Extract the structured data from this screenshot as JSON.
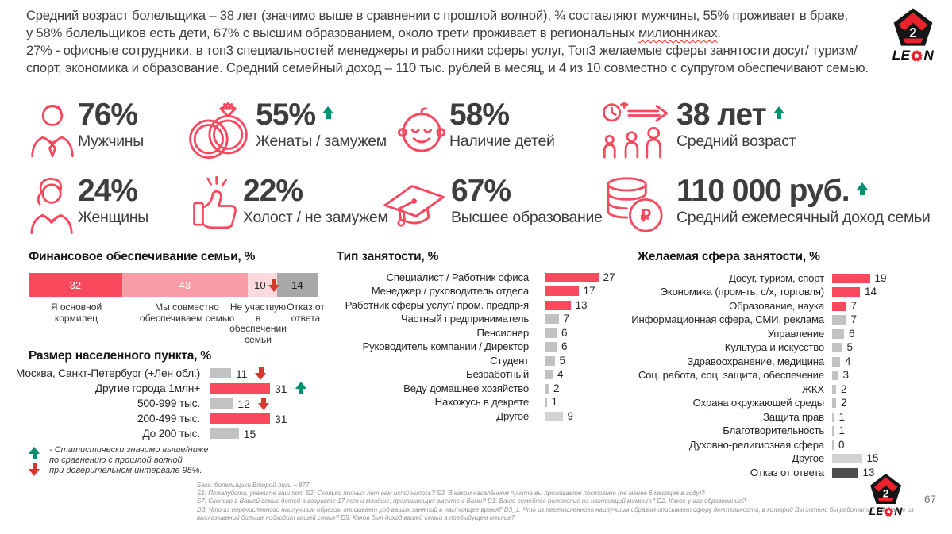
{
  "header": {
    "line1": "Средний возраст болельщика – 38 лет (значимо выше в сравнении с прошлой волной), ¾ составляют мужчины, 55% проживает в браке,",
    "line2_prefix": "у 58% болельщиков есть дети, 67% с высшим образованием, около трети проживает в региональных ",
    "line2_underlined": "милионниках",
    "line2_suffix": ".",
    "line3": "27% - офисные сотрудники, в топ3 специальностей менеджеры и работники сферы услуг, Топ3 желаемые сферы занятости досуг/ туризм/",
    "line4": "спорт, экономика и образование. Средний семейный доход – 110 тыс. рублей в месяц, и 4 из 10 совместно с супругом обеспечивают семью."
  },
  "stats": [
    {
      "value": "76%",
      "label": "Мужчины",
      "icon": "man-icon",
      "trend": ""
    },
    {
      "value": "55%",
      "label": "Женаты / замужем",
      "icon": "wedding-rings-icon",
      "trend": "up"
    },
    {
      "value": "58%",
      "label": "Наличие детей",
      "icon": "baby-icon",
      "trend": ""
    },
    {
      "value": "38 лет",
      "label": "Средний возраст",
      "icon": "age-growth-icon",
      "trend": "up"
    },
    {
      "value": "24%",
      "label": "Женщины",
      "icon": "woman-icon",
      "trend": ""
    },
    {
      "value": "22%",
      "label": "Холост / не замужем",
      "icon": "thumbs-up-icon",
      "trend": ""
    },
    {
      "value": "67%",
      "label": "Высшее образование",
      "icon": "graduation-cap-icon",
      "trend": ""
    },
    {
      "value": "110 000 руб.",
      "label": "Средний ежемесячный доход семьи",
      "icon": "coins-icon",
      "trend": "up"
    }
  ],
  "chart_data": [
    {
      "type": "bar",
      "subtype": "stacked-horizontal",
      "title": "Финансовое обеспечивание семьи, %",
      "categories": [
        "Я основной кормилец",
        "Мы совместно обеспечиваем семью",
        "Не участвую в обеспечении семьи",
        "Отказ от ответа"
      ],
      "values": [
        32,
        43,
        10,
        14
      ],
      "trends": [
        "",
        "",
        "down",
        ""
      ],
      "colors": [
        "#F8495D",
        "#F89CA8",
        "#FBD9DE",
        "#A8A8A8"
      ]
    },
    {
      "type": "bar",
      "subtype": "horizontal",
      "title": "Размер населенного пункта, %",
      "categories": [
        "Москва, Санкт-Петербург (+Лен обл.)",
        "Другие города 1млн+",
        "500-999 тыс.",
        "200-499 тыс.",
        "До 200 тыс."
      ],
      "values": [
        11,
        31,
        12,
        31,
        15
      ],
      "trends": [
        "down",
        "up",
        "down",
        "",
        ""
      ],
      "bar_colors": [
        "gray",
        "red",
        "gray",
        "red",
        "gray"
      ]
    },
    {
      "type": "bar",
      "subtype": "horizontal",
      "title": "Тип занятости, %",
      "categories": [
        "Специалист / Работник офиса",
        "Менеджер / руководитель отдела",
        "Работник сферы услуг/ пром. предпр-я",
        "Частный предприниматель",
        "Пенсионер",
        "Руководитель компании / Директор",
        "Студент",
        "Безработный",
        "Веду домашнее хозяйство",
        "Нахожусь в декрете",
        "Другое"
      ],
      "values": [
        27,
        17,
        13,
        7,
        6,
        6,
        5,
        4,
        2,
        1,
        9
      ],
      "bar_colors": [
        "red",
        "red",
        "red",
        "gray",
        "gray",
        "gray",
        "gray",
        "gray",
        "gray",
        "gray",
        "lightgray"
      ]
    },
    {
      "type": "bar",
      "subtype": "horizontal",
      "title": "Желаемая сфера занятости, %",
      "categories": [
        "Досуг, туризм, спорт",
        "Экономика (пром-ть, с/х, торговля)",
        "Образование, наука",
        "Информационная сфера, СМИ, реклама",
        "Управление",
        "Культура и искусство",
        "Здравоохранение, медицина",
        "Соц. работа, соц. защита, обеспечение",
        "ЖКХ",
        "Охрана окружающей среды",
        "Защита прав",
        "Благотворительность",
        "Духовно-религиозная сфера",
        "Другое",
        "Отказ от ответа"
      ],
      "values": [
        19,
        14,
        7,
        7,
        6,
        5,
        4,
        3,
        2,
        2,
        1,
        1,
        0,
        15,
        13
      ],
      "bar_colors": [
        "red",
        "red",
        "red",
        "gray",
        "gray",
        "gray",
        "gray",
        "gray",
        "gray",
        "gray",
        "gray",
        "gray",
        "gray",
        "lightgray",
        "dark"
      ]
    }
  ],
  "legend": {
    "line1": "- Статистически значимо выше/ниже",
    "line2": "по сравнению с прошлой волной",
    "line3": "при доверительном интервале 95%."
  },
  "footer": {
    "lines": [
      "База: болельщики Второй лиги – 877.",
      "S1. Пожалуйста, укажите ваш пол: S2. Сколько полных лет вам исполнилось? S3. В каком населённом пункте вы проживаете постоянно (не менее 6 месяцев в году)?",
      "S7. Сколько в Вашей семье детей в возрасте 17 лет и младше, проживающих вместе с Вами? D1. Ваше семейное положение на настоящий момент? D2. Какое у вас образование?",
      "D3. Что из перечисленного наилучшим образом описывает род ваших занятий в настоящее время? D3_1. Что из перечисленного наилучшим образом описывает сферу деятельности, в которой Вы хотели бы работать? D4. Какое из",
      "высказываний больше подходит вашей семье? D5. Каков был доход вашей семьи в предыдущем месяце?"
    ]
  },
  "logo": {
    "badge_number": "2",
    "word_start": "LE",
    "word_end": "N"
  },
  "page_number": "67",
  "colors": {
    "accent_red": "#F8485E",
    "bar_red": "#F8495D",
    "bar_gray": "#C2C2C2",
    "bar_dark": "#4D4D4D",
    "trend_green": "#00916E",
    "trend_red": "#D8362B"
  }
}
